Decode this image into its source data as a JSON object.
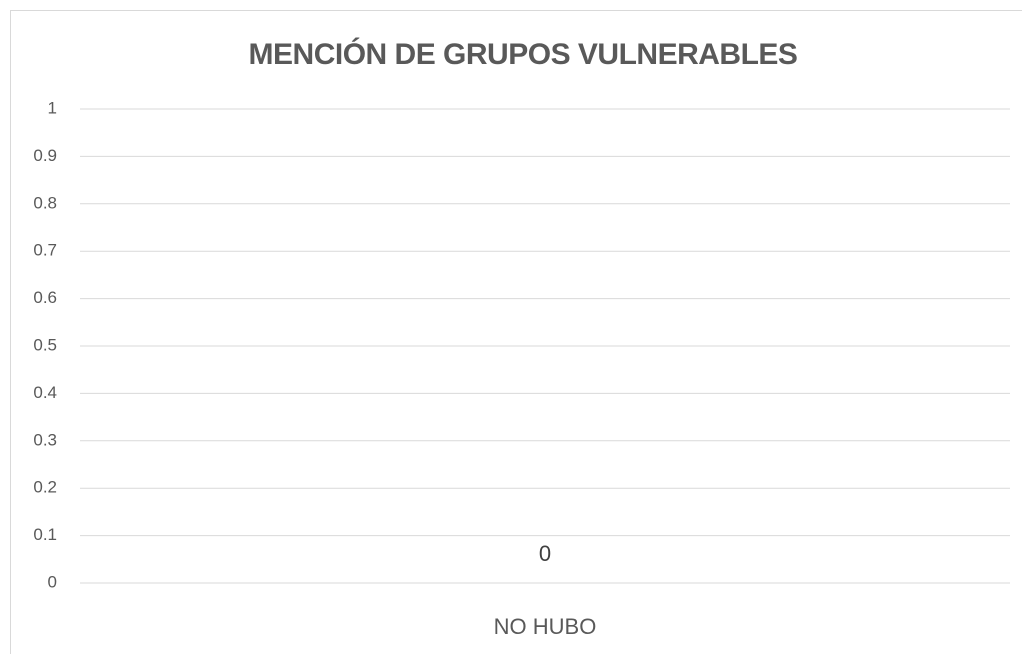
{
  "chart_data": {
    "type": "bar",
    "title": "MENCIÓN DE GRUPOS VULNERABLES",
    "categories": [
      "NO HUBO"
    ],
    "values": [
      0
    ],
    "color": "#4472c4",
    "ylim": [
      0,
      1
    ],
    "yticks": [
      0,
      0.1,
      0.2,
      0.3,
      0.4,
      0.5,
      0.6,
      0.7,
      0.8,
      0.9,
      1
    ],
    "grid": true
  }
}
